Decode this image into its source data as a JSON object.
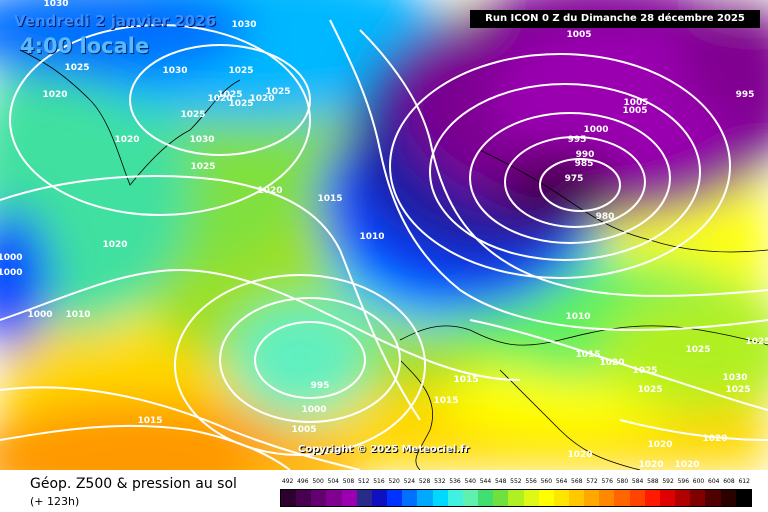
{
  "header": {
    "date": "Vendredi 2 janvier 2026",
    "time": "4:00 locale",
    "run": "Run ICON 0 Z du Dimanche 28 décembre 2025"
  },
  "copyright": "Copyright © 2025 Meteociel.fr",
  "footer": {
    "parameter": "Géop. Z500 & pression au sol",
    "lead_time": "(+ 123h)"
  },
  "legend": {
    "values": [
      "492",
      "496",
      "500",
      "504",
      "508",
      "512",
      "516",
      "520",
      "524",
      "528",
      "532",
      "536",
      "540",
      "544",
      "548",
      "552",
      "556",
      "560",
      "564",
      "568",
      "572",
      "576",
      "580",
      "584",
      "588",
      "592",
      "596",
      "600",
      "604",
      "608",
      "612"
    ],
    "colors": [
      "#2d0030",
      "#480050",
      "#640070",
      "#800090",
      "#9a00b0",
      "#2a2a8a",
      "#1010c0",
      "#0033ff",
      "#0070ff",
      "#00a8ff",
      "#00d8ff",
      "#40f0e0",
      "#60f0b0",
      "#40e070",
      "#70e040",
      "#b0f020",
      "#e0f818",
      "#ffff00",
      "#ffe600",
      "#ffc800",
      "#ffa800",
      "#ff8800",
      "#ff6600",
      "#ff4400",
      "#ff1a00",
      "#e00000",
      "#b00000",
      "#800000",
      "#500000",
      "#2a0000",
      "#000000"
    ]
  },
  "isobars": [
    "1030",
    "1030",
    "1025",
    "1030",
    "1025",
    "1020",
    "1025",
    "1020",
    "1020",
    "1025",
    "1025",
    "1020",
    "1025",
    "1030",
    "1025",
    "1020",
    "1015",
    "1010",
    "1000",
    "1000",
    "1000",
    "1010",
    "995",
    "1000",
    "1005",
    "1015",
    "1005",
    "995",
    "1005",
    "1005",
    "1000",
    "995",
    "990",
    "985",
    "975",
    "980",
    "1010",
    "1015",
    "1020",
    "1025",
    "1025",
    "1030",
    "1025",
    "1025",
    "1025",
    "1015",
    "1015",
    "1020",
    "1020",
    "1020",
    "1020",
    "1020",
    "1020"
  ]
}
